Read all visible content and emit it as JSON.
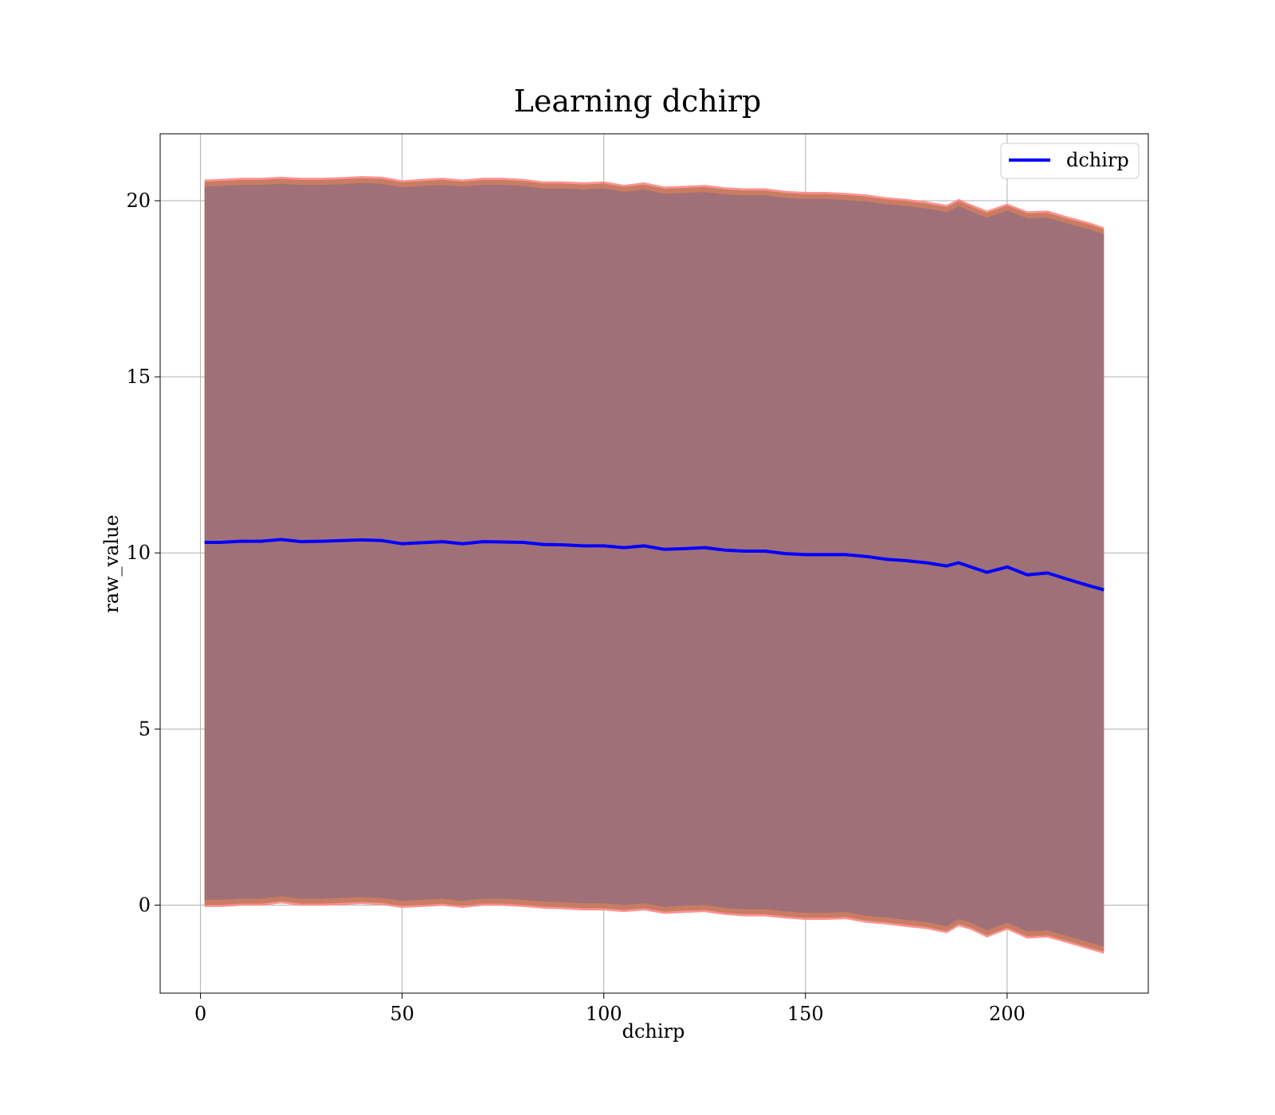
{
  "chart_data": {
    "type": "line",
    "title": "Learning dchirp",
    "xlabel": "dchirp",
    "ylabel": "raw_value",
    "xlim": [
      -10,
      235
    ],
    "ylim": [
      -2.5,
      21.9
    ],
    "xticks": [
      0,
      50,
      100,
      150,
      200
    ],
    "yticks": [
      0,
      5,
      10,
      15,
      20
    ],
    "xtick_labels": [
      "0",
      "50",
      "100",
      "150",
      "200"
    ],
    "ytick_labels": [
      "0",
      "5",
      "10",
      "15",
      "20"
    ],
    "grid": true,
    "legend": {
      "position": "top-right",
      "entries": [
        "dchirp"
      ]
    },
    "colors": {
      "line": "#0000ff",
      "band_outer": "#ff7f7f",
      "band_mid": "#c97c62",
      "band_inner": "#a07078"
    },
    "series": [
      {
        "name": "dchirp",
        "x": [
          1,
          5,
          10,
          15,
          20,
          25,
          30,
          35,
          40,
          45,
          50,
          55,
          60,
          65,
          70,
          75,
          80,
          85,
          90,
          95,
          100,
          105,
          110,
          115,
          120,
          125,
          130,
          135,
          140,
          145,
          150,
          155,
          160,
          165,
          170,
          175,
          180,
          185,
          188,
          191,
          195,
          200,
          205,
          210,
          215,
          220,
          224
        ],
        "y": [
          10.3,
          10.3,
          10.33,
          10.33,
          10.38,
          10.32,
          10.33,
          10.35,
          10.37,
          10.35,
          10.26,
          10.29,
          10.32,
          10.26,
          10.32,
          10.31,
          10.3,
          10.24,
          10.23,
          10.2,
          10.2,
          10.15,
          10.2,
          10.1,
          10.12,
          10.15,
          10.08,
          10.05,
          10.05,
          9.98,
          9.95,
          9.95,
          9.95,
          9.9,
          9.82,
          9.78,
          9.72,
          9.63,
          9.72,
          9.6,
          9.45,
          9.6,
          9.38,
          9.43,
          9.25,
          9.08,
          8.95
        ],
        "upper": [
          20.6,
          20.62,
          20.65,
          20.65,
          20.68,
          20.65,
          20.65,
          20.67,
          20.7,
          20.68,
          20.58,
          20.62,
          20.65,
          20.6,
          20.65,
          20.65,
          20.62,
          20.55,
          20.55,
          20.52,
          20.55,
          20.45,
          20.52,
          20.4,
          20.42,
          20.45,
          20.38,
          20.35,
          20.35,
          20.28,
          20.25,
          20.25,
          20.22,
          20.18,
          20.1,
          20.05,
          19.98,
          19.88,
          20.05,
          19.9,
          19.72,
          19.92,
          19.7,
          19.72,
          19.55,
          19.4,
          19.25
        ],
        "lower": [
          -0.05,
          -0.05,
          -0.02,
          -0.02,
          0.05,
          -0.02,
          -0.02,
          0.0,
          0.03,
          0.0,
          -0.08,
          -0.05,
          -0.02,
          -0.08,
          -0.02,
          -0.02,
          -0.05,
          -0.1,
          -0.12,
          -0.15,
          -0.15,
          -0.2,
          -0.15,
          -0.25,
          -0.22,
          -0.2,
          -0.28,
          -0.32,
          -0.32,
          -0.38,
          -0.42,
          -0.42,
          -0.4,
          -0.5,
          -0.55,
          -0.62,
          -0.68,
          -0.8,
          -0.6,
          -0.7,
          -0.92,
          -0.7,
          -0.95,
          -0.92,
          -1.08,
          -1.25,
          -1.38
        ]
      }
    ]
  }
}
